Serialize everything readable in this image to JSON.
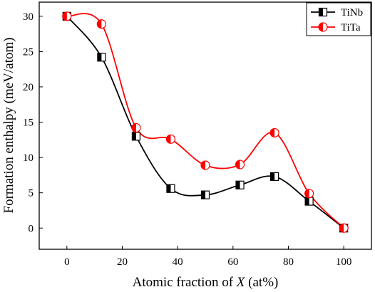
{
  "chart_data": {
    "type": "line",
    "xlabel": "Atomic fraction of X (at%)",
    "xlabel_parts": {
      "prefix": "Atomic fraction of ",
      "var": "X",
      "suffix": " (at%)"
    },
    "ylabel": "Formation enthalpy (meV/atom)",
    "xlim": [
      -10,
      110
    ],
    "ylim": [
      -3,
      32
    ],
    "xticks": [
      0,
      20,
      40,
      60,
      80,
      100
    ],
    "yticks": [
      0,
      5,
      10,
      15,
      20,
      25,
      30
    ],
    "grid": false,
    "legend_position": "top-right",
    "smoothed": true,
    "series": [
      {
        "name": "TiNb",
        "color": "#000000",
        "marker": "half-filled-square",
        "x": [
          0,
          12.5,
          25,
          37.5,
          50,
          62.5,
          75,
          87.5,
          100
        ],
        "y": [
          30.0,
          24.2,
          13.0,
          5.6,
          4.7,
          6.1,
          7.3,
          3.8,
          0.0
        ]
      },
      {
        "name": "TiTa",
        "color": "#ff0000",
        "marker": "half-filled-circle",
        "x": [
          0,
          12.5,
          25,
          37.5,
          50,
          62.5,
          75,
          87.5,
          100
        ],
        "y": [
          30.0,
          28.9,
          14.2,
          12.6,
          8.9,
          9.0,
          13.5,
          4.9,
          0.0
        ]
      }
    ]
  }
}
